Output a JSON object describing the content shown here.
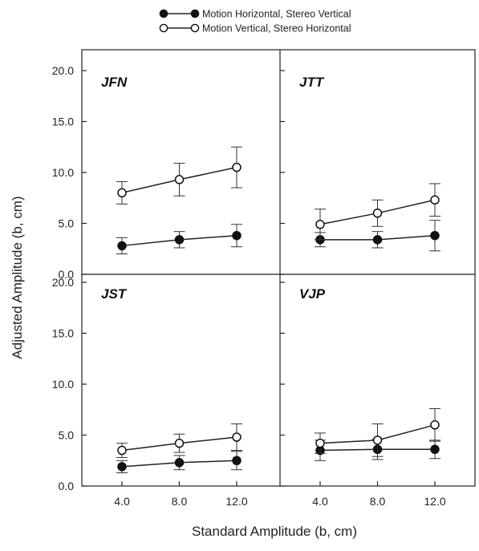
{
  "chart_data": {
    "type": "scatter",
    "xlabel": "Standard Amplitude (b, cm)",
    "ylabel": "Adjusted Amplitude (b, cm)",
    "x_ticks": [
      "4.0",
      "8.0",
      "12.0"
    ],
    "y_ticks": [
      "0.0",
      "5.0",
      "10.0",
      "15.0",
      "20.0"
    ],
    "ylim": [
      0,
      20
    ],
    "x": [
      4,
      8,
      12
    ],
    "legend": [
      {
        "name": "Motion Horizontal, Stereo Vertical",
        "marker": "filled"
      },
      {
        "name": "Motion Vertical, Stereo Horizontal",
        "marker": "open"
      }
    ],
    "panels": [
      {
        "label": "JFN",
        "series": [
          {
            "name": "Motion Horizontal, Stereo Vertical",
            "marker": "filled",
            "values": [
              2.8,
              3.4,
              3.8
            ],
            "err": [
              0.8,
              0.8,
              1.1
            ]
          },
          {
            "name": "Motion Vertical, Stereo Horizontal",
            "marker": "open",
            "values": [
              8.0,
              9.3,
              10.5
            ],
            "err": [
              1.1,
              1.6,
              2.0
            ]
          }
        ]
      },
      {
        "label": "JTT",
        "series": [
          {
            "name": "Motion Horizontal, Stereo Vertical",
            "marker": "filled",
            "values": [
              3.4,
              3.4,
              3.8
            ],
            "err": [
              0.7,
              0.8,
              1.5
            ]
          },
          {
            "name": "Motion Vertical, Stereo Horizontal",
            "marker": "open",
            "values": [
              4.9,
              6.0,
              7.3
            ],
            "err": [
              1.5,
              1.3,
              1.6
            ]
          }
        ]
      },
      {
        "label": "JST",
        "series": [
          {
            "name": "Motion Horizontal, Stereo Vertical",
            "marker": "filled",
            "values": [
              1.9,
              2.3,
              2.5
            ],
            "err": [
              0.6,
              0.7,
              0.9
            ]
          },
          {
            "name": "Motion Vertical, Stereo Horizontal",
            "marker": "open",
            "values": [
              3.5,
              4.2,
              4.8
            ],
            "err": [
              0.7,
              0.9,
              1.3
            ]
          }
        ]
      },
      {
        "label": "VJP",
        "series": [
          {
            "name": "Motion Horizontal, Stereo Vertical",
            "marker": "filled",
            "values": [
              3.5,
              3.6,
              3.6
            ],
            "err": [
              1.0,
              1.0,
              0.9
            ]
          },
          {
            "name": "Motion Vertical, Stereo Horizontal",
            "marker": "open",
            "values": [
              4.2,
              4.5,
              6.0
            ],
            "err": [
              1.0,
              1.6,
              1.6
            ]
          }
        ]
      }
    ]
  }
}
